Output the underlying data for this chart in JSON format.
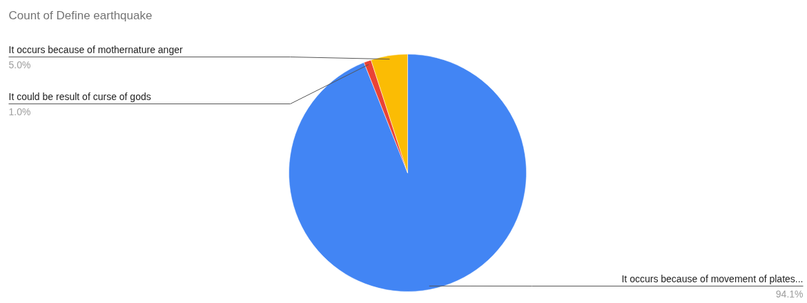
{
  "chart_data": {
    "type": "pie",
    "title": "Count of Define earthquake",
    "categories": [
      "It occurs because of movement of plates...",
      "It could be result of curse of gods",
      "It occurs because of mothernature anger"
    ],
    "values": [
      94.1,
      1.0,
      5.0
    ],
    "value_labels": [
      "94.1%",
      "1.0%",
      "5.0%"
    ],
    "colors": [
      "#4285f4",
      "#ea4335",
      "#fbbc04"
    ]
  }
}
